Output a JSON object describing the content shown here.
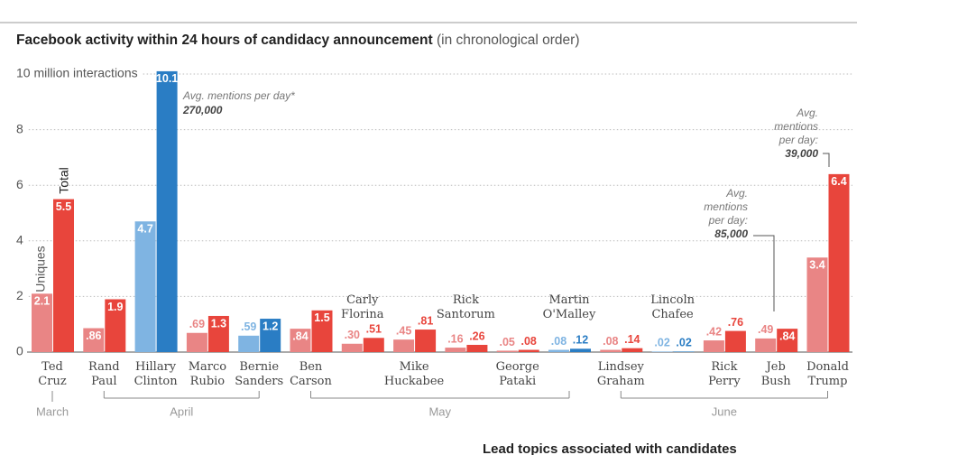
{
  "chart_data": {
    "type": "bar",
    "title": "Facebook activity within 24 hours of candidacy announcement",
    "subtitle": "(in chronological order)",
    "categories": [
      "Ted Cruz",
      "Rand Paul",
      "Hillary Clinton",
      "Marco Rubio",
      "Bernie Sanders",
      "Ben Carson",
      "Carly Florina",
      "Mike Huckabee",
      "Rick Santorum",
      "George Pataki",
      "Martin O'Malley",
      "Lindsey Graham",
      "Lincoln Chafee",
      "Rick Perry",
      "Jeb Bush",
      "Donald Trump"
    ],
    "series": [
      {
        "name": "Uniques",
        "colors": [
          "#e98585",
          "#e98585",
          "#7fb4e2",
          "#e98585",
          "#7fb4e2",
          "#e98585",
          "#e98585",
          "#e98585",
          "#e98585",
          "#e98585",
          "#7fb4e2",
          "#e98585",
          "#7fb4e2",
          "#e98585",
          "#e98585",
          "#e98585"
        ],
        "values": [
          2.1,
          0.86,
          4.7,
          0.69,
          0.59,
          0.84,
          0.3,
          0.45,
          0.16,
          0.05,
          0.08,
          0.08,
          0.02,
          0.42,
          0.49,
          3.4
        ],
        "value_labels": [
          "2.1",
          ".86",
          "4.7",
          ".69",
          ".59",
          ".84",
          ".30",
          ".45",
          ".16",
          ".05",
          ".08",
          ".08",
          ".02",
          ".42",
          ".49",
          "3.4"
        ]
      },
      {
        "name": "Total",
        "colors": [
          "#e8453c",
          "#e8453c",
          "#2a7dc4",
          "#e8453c",
          "#2a7dc4",
          "#e8453c",
          "#e8453c",
          "#e8453c",
          "#e8453c",
          "#e8453c",
          "#2a7dc4",
          "#e8453c",
          "#2a7dc4",
          "#e8453c",
          "#e8453c",
          "#e8453c"
        ],
        "values": [
          5.5,
          1.9,
          10.1,
          1.3,
          1.2,
          1.5,
          0.51,
          0.81,
          0.26,
          0.08,
          0.12,
          0.14,
          0.02,
          0.76,
          0.84,
          6.4
        ],
        "value_labels": [
          "5.5",
          "1.9",
          "10.1",
          "1.3",
          "1.2",
          "1.5",
          ".51",
          ".81",
          ".26",
          ".08",
          ".12",
          ".14",
          ".02",
          ".76",
          ".84",
          "6.4"
        ]
      }
    ],
    "ylim": [
      0,
      10
    ],
    "yticks": [
      0,
      2,
      4,
      6,
      8,
      {
        "value": 10,
        "label": "10 million interactions"
      }
    ],
    "grid": true,
    "months": [
      "March",
      "April",
      "May",
      "June"
    ],
    "annotations": [
      {
        "lines": [
          "Avg. mentions per day*"
        ],
        "value": "270,000"
      },
      {
        "lines": [
          "Avg.",
          "mentions",
          "per day:"
        ],
        "value": "85,000"
      },
      {
        "lines": [
          "Avg.",
          "mentions",
          "per day:"
        ],
        "value": "39,000"
      }
    ],
    "footer": "Lead topics associated with candidates"
  }
}
